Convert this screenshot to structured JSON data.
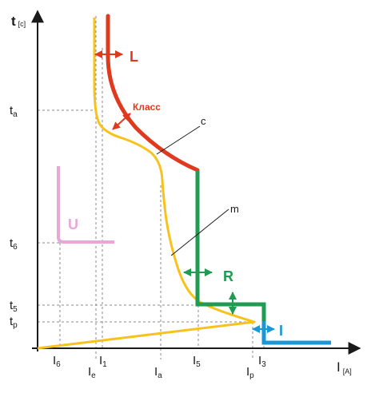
{
  "axes": {
    "y_title": "t",
    "y_unit": "[c]",
    "x_title": "I",
    "x_unit": "[A]"
  },
  "y_ticks": {
    "ta": {
      "main": "t",
      "sub": "a"
    },
    "t6": {
      "main": "t",
      "sub": "6"
    },
    "t5": {
      "main": "t",
      "sub": "5"
    },
    "tp": {
      "main": "t",
      "sub": "p"
    }
  },
  "x_ticks": {
    "I6": {
      "main": "I",
      "sub": "6"
    },
    "Ie": {
      "main": "I",
      "sub": "e"
    },
    "I1": {
      "main": "I",
      "sub": "1"
    },
    "Ia": {
      "main": "I",
      "sub": "a"
    },
    "I5": {
      "main": "I",
      "sub": "5"
    },
    "Ip": {
      "main": "I",
      "sub": "p"
    },
    "I3": {
      "main": "I",
      "sub": "3"
    }
  },
  "labels": {
    "L": "L",
    "klass": "Класс",
    "c": "c",
    "m": "m",
    "U": "U",
    "R": "R",
    "I": "I"
  },
  "colors": {
    "yellow_curve": "#f7c21b",
    "red_curve": "#e03a1e",
    "green_curve": "#1f9b52",
    "blue_curve": "#1a97d4",
    "pink_curve": "#e6a8d6",
    "dashed": "#8a8a8a",
    "axis": "#1a1a1a"
  }
}
